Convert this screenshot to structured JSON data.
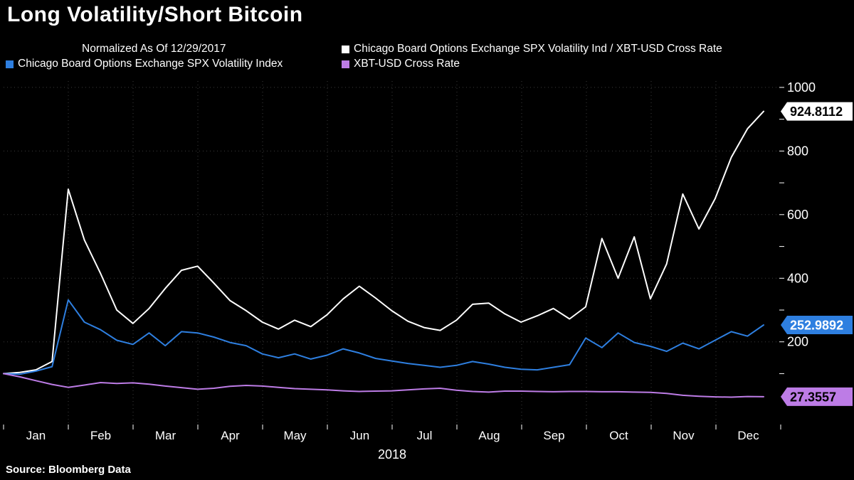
{
  "title": "Long Volatility/Short Bitcoin",
  "legend": {
    "note": "Normalized As Of 12/29/2017"
  },
  "source": "Source: Bloomberg Data",
  "chart_data": {
    "type": "line",
    "title": "Long Volatility/Short Bitcoin",
    "normalized_as_of": "12/29/2017",
    "x_axis": {
      "year_label": "2018",
      "tick_labels": [
        "Jan",
        "Feb",
        "Mar",
        "Apr",
        "May",
        "Jun",
        "Jul",
        "Aug",
        "Sep",
        "Oct",
        "Nov",
        "Dec"
      ]
    },
    "y_axis": {
      "side": "right",
      "tick_labels": [
        200,
        400,
        600,
        800,
        1000
      ],
      "minor_tick_step": 100,
      "range": [
        -60,
        1020
      ]
    },
    "grid": {
      "show": true,
      "style": "dotted"
    },
    "series": [
      {
        "name": "Chicago Board Options Exchange SPX Volatility Ind / XBT-USD Cross Rate",
        "color": "#ffffff",
        "last_value": 924.8112,
        "badge": {
          "label": "924.8112",
          "bg": "#ffffff",
          "fg": "#000000"
        },
        "values": [
          100,
          104,
          112,
          138,
          680,
          520,
          415,
          300,
          258,
          305,
          368,
          425,
          438,
          385,
          330,
          298,
          262,
          240,
          268,
          248,
          285,
          335,
          375,
          338,
          298,
          265,
          245,
          236,
          268,
          318,
          322,
          288,
          262,
          282,
          305,
          272,
          310,
          525,
          400,
          530,
          335,
          445,
          665,
          555,
          650,
          780,
          870,
          924.8112
        ]
      },
      {
        "name": "Chicago Board Options Exchange SPX Volatility Index",
        "color": "#2e7fe0",
        "last_value": 252.9892,
        "badge": {
          "label": "252.9892",
          "bg": "#2e7fe0",
          "fg": "#ffffff"
        },
        "values": [
          100,
          98,
          108,
          122,
          332,
          262,
          238,
          205,
          192,
          228,
          188,
          232,
          228,
          215,
          198,
          188,
          162,
          150,
          162,
          146,
          158,
          178,
          165,
          148,
          140,
          132,
          126,
          120,
          126,
          138,
          130,
          120,
          114,
          112,
          120,
          128,
          212,
          182,
          228,
          198,
          186,
          170,
          196,
          178,
          205,
          232,
          218,
          252.9892
        ]
      },
      {
        "name": "XBT-USD Cross Rate",
        "color": "#bd7ce6",
        "last_value": 27.3557,
        "badge": {
          "label": "27.3557",
          "bg": "#bd7ce6",
          "fg": "#000000"
        },
        "values": [
          100,
          90,
          78,
          66,
          57,
          64,
          72,
          69,
          71,
          67,
          61,
          56,
          51,
          54,
          60,
          63,
          61,
          57,
          53,
          51,
          49,
          46,
          44,
          45,
          46,
          49,
          52,
          54,
          48,
          44,
          42,
          45,
          45,
          44,
          43,
          44,
          44,
          43,
          43,
          42,
          41,
          38,
          32,
          29,
          27,
          26,
          28,
          27.3557
        ]
      }
    ]
  }
}
